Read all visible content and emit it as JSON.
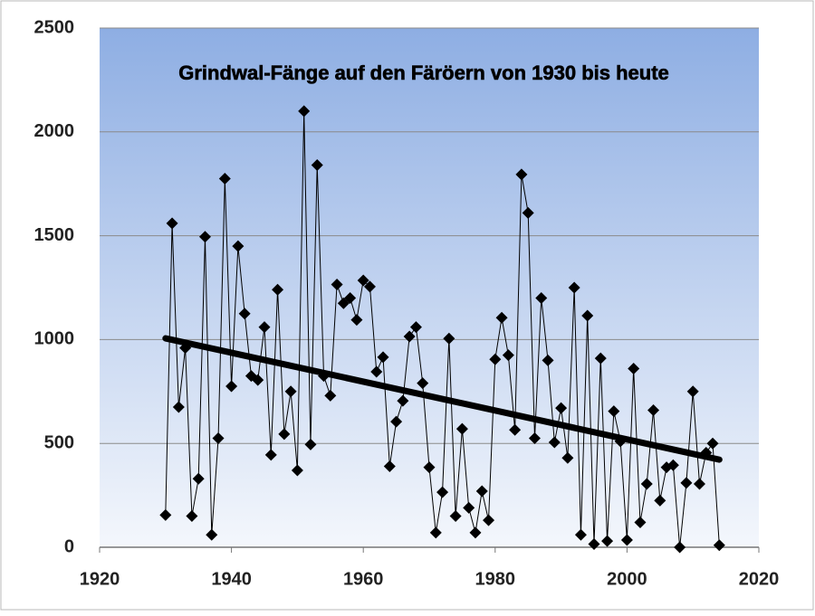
{
  "chart_data": {
    "type": "line",
    "title": "Grindwal-Fänge auf den Färöern von 1930 bis heute",
    "x": [
      1930,
      1931,
      1932,
      1933,
      1934,
      1935,
      1936,
      1937,
      1938,
      1939,
      1940,
      1941,
      1942,
      1943,
      1944,
      1945,
      1946,
      1947,
      1948,
      1949,
      1950,
      1951,
      1952,
      1953,
      1954,
      1955,
      1956,
      1957,
      1958,
      1959,
      1960,
      1961,
      1962,
      1963,
      1964,
      1965,
      1966,
      1967,
      1968,
      1969,
      1970,
      1971,
      1972,
      1973,
      1974,
      1975,
      1976,
      1977,
      1978,
      1979,
      1980,
      1981,
      1982,
      1983,
      1984,
      1985,
      1986,
      1987,
      1988,
      1989,
      1990,
      1991,
      1992,
      1993,
      1994,
      1995,
      1996,
      1997,
      1998,
      1999,
      2000,
      2001,
      2002,
      2003,
      2004,
      2005,
      2006,
      2007,
      2008,
      2009,
      2010,
      2011,
      2012,
      2013,
      2014
    ],
    "series": [
      {
        "color": "#000000",
        "values": [
          155,
          1560,
          675,
          960,
          150,
          330,
          1495,
          60,
          525,
          1775,
          775,
          1450,
          1125,
          825,
          805,
          1060,
          445,
          1240,
          545,
          750,
          370,
          2100,
          495,
          1840,
          825,
          730,
          1265,
          1175,
          1200,
          1095,
          1285,
          1255,
          845,
          915,
          390,
          605,
          705,
          1015,
          1060,
          790,
          385,
          70,
          265,
          1005,
          150,
          570,
          190,
          70,
          270,
          130,
          905,
          1105,
          925,
          565,
          1795,
          1610,
          525,
          1200,
          900,
          505,
          670,
          430,
          1250,
          60,
          1115,
          15,
          910,
          30,
          655,
          510,
          35,
          860,
          120,
          305,
          660,
          225,
          385,
          395,
          0,
          310,
          750,
          305,
          455,
          500,
          10
        ]
      }
    ],
    "trendline": {
      "x": [
        1930,
        2014
      ],
      "values": [
        1006,
        422
      ],
      "color": "#000000"
    },
    "xlim": [
      1920,
      2020
    ],
    "xticks": [
      1920,
      1940,
      1960,
      1980,
      2000,
      2020
    ],
    "ylim": [
      0,
      2500
    ],
    "yticks": [
      0,
      500,
      1000,
      1500,
      2000,
      2500
    ],
    "grid": true
  }
}
